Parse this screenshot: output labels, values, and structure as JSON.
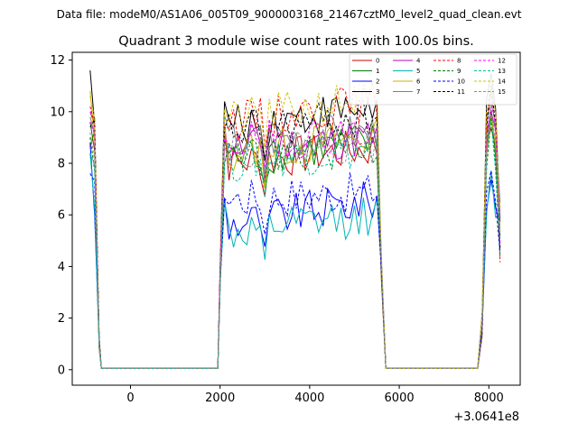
{
  "suptitle": "Data file: modeM0/AS1A06_005T09_9000003168_21467cztM0_level2_quad_clean.evt",
  "chart_data": {
    "type": "line",
    "title": "Quadrant 3 module wise count rates with 100.0s bins.",
    "xlabel": "",
    "ylabel": "",
    "x_offset_label": "+3.0641e8",
    "xlim": [
      -1300,
      8700
    ],
    "ylim": [
      -0.6,
      12.3
    ],
    "x_ticks": [
      0,
      2000,
      4000,
      6000,
      8000
    ],
    "x_tick_labels": [
      "0",
      "2000",
      "4000",
      "6000",
      "8000"
    ],
    "y_ticks": [
      0,
      2,
      4,
      6,
      8,
      10,
      12
    ],
    "y_tick_labels": [
      "0",
      "2",
      "4",
      "6",
      "8",
      "10",
      "12"
    ],
    "legend_position": "top-right",
    "segments": [
      {
        "start": -900,
        "end": -700,
        "gap_to": 1900
      },
      {
        "start": 2000,
        "end": 5500,
        "gap_to": 7800
      },
      {
        "start": 7900,
        "end": 8100,
        "gap_to": null
      }
    ],
    "series": [
      {
        "name": "0",
        "color": "#cc0000",
        "style": "solid",
        "base": 8.6,
        "seg1": 9.2,
        "seg2": 8.0,
        "seg2end": 8.6,
        "seg3": 8.4
      },
      {
        "name": "1",
        "color": "#008000",
        "style": "solid",
        "base": 9.6,
        "seg1": 8.6,
        "seg2": 8.2,
        "seg2end": 8.8,
        "seg3": 8.6
      },
      {
        "name": "2",
        "color": "#0000ff",
        "style": "solid",
        "base": 8.8,
        "seg1": 6.3,
        "seg2": 5.6,
        "seg2end": 6.6,
        "seg3": 6.4
      },
      {
        "name": "3",
        "color": "#000000",
        "style": "solid",
        "base": 11.6,
        "seg1": 10.0,
        "seg2": 9.4,
        "seg2end": 10.2,
        "seg3": 10.0
      },
      {
        "name": "4",
        "color": "#c000c0",
        "style": "solid",
        "base": 10.0,
        "seg1": 9.0,
        "seg2": 8.6,
        "seg2end": 9.0,
        "seg3": 9.0
      },
      {
        "name": "5",
        "color": "#00b4b4",
        "style": "solid",
        "base": 8.4,
        "seg1": 6.0,
        "seg2": 5.2,
        "seg2end": 6.0,
        "seg3": 6.2
      },
      {
        "name": "6",
        "color": "#c8b400",
        "style": "solid",
        "base": 10.8,
        "seg1": 8.8,
        "seg2": 8.4,
        "seg2end": 9.0,
        "seg3": 8.8
      },
      {
        "name": "7",
        "color": "#808080",
        "style": "solid",
        "base": 9.8,
        "seg1": 9.2,
        "seg2": 8.8,
        "seg2end": 9.2,
        "seg3": 9.2
      },
      {
        "name": "8",
        "color": "#ff0000",
        "style": "dashed",
        "base": 10.2,
        "seg1": 9.8,
        "seg2": 9.6,
        "seg2end": 10.4,
        "seg3": 9.8
      },
      {
        "name": "9",
        "color": "#008000",
        "style": "dashed",
        "base": 9.0,
        "seg1": 8.2,
        "seg2": 8.2,
        "seg2end": 8.6,
        "seg3": 8.2
      },
      {
        "name": "10",
        "color": "#0000ff",
        "style": "dashed",
        "base": 7.6,
        "seg1": 6.8,
        "seg2": 6.6,
        "seg2end": 6.9,
        "seg3": 6.6
      },
      {
        "name": "11",
        "color": "#000000",
        "style": "dashed",
        "base": 9.4,
        "seg1": 9.4,
        "seg2": 9.2,
        "seg2end": 9.8,
        "seg3": 9.4
      },
      {
        "name": "12",
        "color": "#ff00ff",
        "style": "dashed",
        "base": 9.6,
        "seg1": 9.0,
        "seg2": 8.8,
        "seg2end": 9.2,
        "seg3": 9.2
      },
      {
        "name": "13",
        "color": "#00c0a0",
        "style": "dashed",
        "base": 8.4,
        "seg1": 8.0,
        "seg2": 8.0,
        "seg2end": 8.6,
        "seg3": 8.0
      },
      {
        "name": "14",
        "color": "#d4c000",
        "style": "dashed",
        "base": 10.6,
        "seg1": 10.0,
        "seg2": 9.6,
        "seg2end": 10.6,
        "seg3": 10.0
      },
      {
        "name": "15",
        "color": "#909090",
        "style": "dashed",
        "base": 9.2,
        "seg1": 8.6,
        "seg2": 8.6,
        "seg2end": 8.8,
        "seg3": 8.6
      }
    ]
  }
}
